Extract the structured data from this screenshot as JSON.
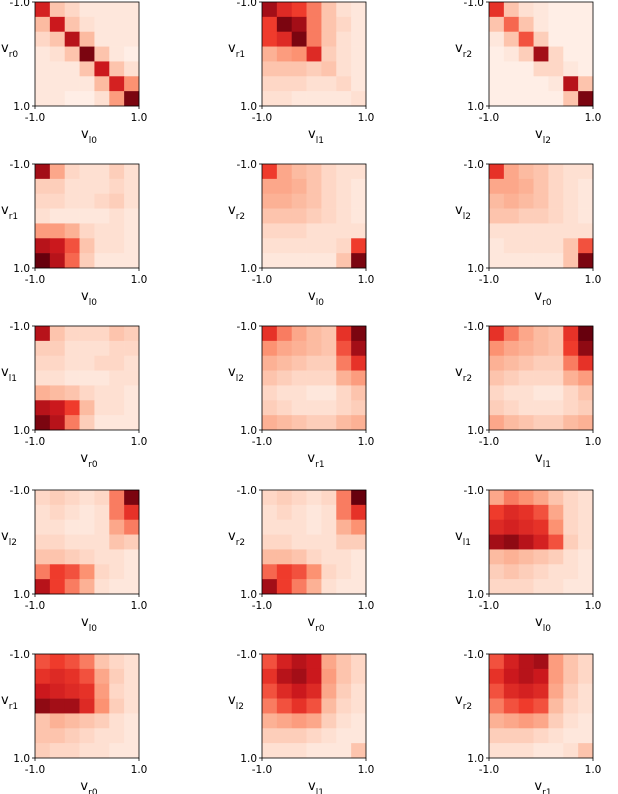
{
  "chart_data": [
    {
      "type": "heatmap",
      "xlabel": "v_{l_0}",
      "ylabel": "v_{r_0}",
      "xticks": [
        "-1.0",
        "1.0"
      ],
      "yticks": [
        "-1.0",
        "1.0"
      ],
      "colormap": "Reds",
      "values": [
        [
          0.9,
          0.3,
          0.2,
          0.1,
          0.1,
          0.1,
          0.1
        ],
        [
          0.35,
          0.95,
          0.3,
          0.15,
          0.1,
          0.1,
          0.1
        ],
        [
          0.2,
          0.3,
          1.0,
          0.35,
          0.1,
          0.1,
          0.1
        ],
        [
          0.1,
          0.15,
          0.3,
          1.15,
          0.3,
          0.1,
          0.05
        ],
        [
          0.1,
          0.1,
          0.1,
          0.3,
          0.95,
          0.3,
          0.15
        ],
        [
          0.1,
          0.1,
          0.1,
          0.1,
          0.35,
          0.9,
          0.55
        ],
        [
          0.1,
          0.1,
          0.05,
          0.05,
          0.15,
          0.5,
          1.15
        ]
      ]
    },
    {
      "type": "heatmap",
      "xlabel": "v_{l_1}",
      "ylabel": "v_{r_1}",
      "xticks": [
        "-1.0",
        "1.0"
      ],
      "yticks": [
        "-1.0",
        "1.0"
      ],
      "colormap": "Reds",
      "values": [
        [
          1.05,
          0.85,
          0.75,
          0.6,
          0.3,
          0.15,
          0.1
        ],
        [
          0.75,
          1.15,
          1.05,
          0.6,
          0.3,
          0.2,
          0.1
        ],
        [
          0.75,
          0.85,
          1.15,
          0.6,
          0.3,
          0.15,
          0.1
        ],
        [
          0.4,
          0.5,
          0.55,
          0.85,
          0.25,
          0.15,
          0.1
        ],
        [
          0.3,
          0.3,
          0.3,
          0.25,
          0.3,
          0.15,
          0.1
        ],
        [
          0.2,
          0.2,
          0.2,
          0.15,
          0.15,
          0.2,
          0.1
        ],
        [
          0.15,
          0.15,
          0.1,
          0.1,
          0.1,
          0.1,
          0.15
        ]
      ]
    },
    {
      "type": "heatmap",
      "xlabel": "v_{l_2}",
      "ylabel": "v_{r_2}",
      "xticks": [
        "-1.0",
        "1.0"
      ],
      "yticks": [
        "-1.0",
        "1.0"
      ],
      "colormap": "Reds",
      "values": [
        [
          0.8,
          0.3,
          0.15,
          0.1,
          0.05,
          0.05,
          0.05
        ],
        [
          0.3,
          0.65,
          0.3,
          0.1,
          0.05,
          0.05,
          0.05
        ],
        [
          0.1,
          0.3,
          0.7,
          0.25,
          0.05,
          0.05,
          0.05
        ],
        [
          0.05,
          0.1,
          0.25,
          1.05,
          0.2,
          0.05,
          0.05
        ],
        [
          0.05,
          0.05,
          0.05,
          0.2,
          0.2,
          0.1,
          0.05
        ],
        [
          0.05,
          0.05,
          0.05,
          0.05,
          0.1,
          1.0,
          0.3
        ],
        [
          0.05,
          0.05,
          0.05,
          0.05,
          0.05,
          0.3,
          1.15
        ]
      ]
    },
    {
      "type": "heatmap",
      "xlabel": "v_{l_0}",
      "ylabel": "v_{r_1}",
      "xticks": [
        "-1.0",
        "1.0"
      ],
      "yticks": [
        "-1.0",
        "1.0"
      ],
      "colormap": "Reds",
      "values": [
        [
          1.05,
          0.45,
          0.2,
          0.15,
          0.15,
          0.25,
          0.15
        ],
        [
          0.25,
          0.25,
          0.15,
          0.15,
          0.15,
          0.2,
          0.15
        ],
        [
          0.2,
          0.2,
          0.15,
          0.15,
          0.2,
          0.25,
          0.15
        ],
        [
          0.15,
          0.1,
          0.1,
          0.1,
          0.1,
          0.15,
          0.1
        ],
        [
          0.5,
          0.5,
          0.4,
          0.2,
          0.15,
          0.15,
          0.1
        ],
        [
          1.0,
          0.95,
          0.7,
          0.3,
          0.15,
          0.15,
          0.1
        ],
        [
          1.2,
          1.0,
          0.65,
          0.25,
          0.1,
          0.1,
          0.1
        ]
      ]
    },
    {
      "type": "heatmap",
      "xlabel": "v_{l_0}",
      "ylabel": "v_{r_2}",
      "xticks": [
        "-1.0",
        "1.0"
      ],
      "yticks": [
        "-1.0",
        "1.0"
      ],
      "colormap": "Reds",
      "values": [
        [
          0.75,
          0.45,
          0.35,
          0.3,
          0.2,
          0.15,
          0.15
        ],
        [
          0.45,
          0.45,
          0.4,
          0.3,
          0.2,
          0.15,
          0.1
        ],
        [
          0.4,
          0.4,
          0.35,
          0.3,
          0.2,
          0.15,
          0.1
        ],
        [
          0.3,
          0.3,
          0.3,
          0.25,
          0.2,
          0.15,
          0.1
        ],
        [
          0.2,
          0.2,
          0.2,
          0.15,
          0.15,
          0.15,
          0.15
        ],
        [
          0.15,
          0.15,
          0.15,
          0.15,
          0.15,
          0.2,
          0.75
        ],
        [
          0.1,
          0.1,
          0.1,
          0.1,
          0.1,
          0.3,
          1.15
        ]
      ]
    },
    {
      "type": "heatmap",
      "xlabel": "v_{r_0}",
      "ylabel": "v_{l_2}",
      "xticks": [
        "-1.0",
        "1.0"
      ],
      "yticks": [
        "-1.0",
        "1.0"
      ],
      "colormap": "Reds",
      "values": [
        [
          0.8,
          0.45,
          0.35,
          0.3,
          0.2,
          0.15,
          0.15
        ],
        [
          0.45,
          0.45,
          0.4,
          0.3,
          0.2,
          0.15,
          0.1
        ],
        [
          0.35,
          0.4,
          0.35,
          0.3,
          0.2,
          0.15,
          0.1
        ],
        [
          0.3,
          0.3,
          0.25,
          0.25,
          0.2,
          0.15,
          0.1
        ],
        [
          0.15,
          0.15,
          0.15,
          0.15,
          0.15,
          0.15,
          0.15
        ],
        [
          0.1,
          0.15,
          0.15,
          0.15,
          0.15,
          0.3,
          0.7
        ],
        [
          0.1,
          0.1,
          0.1,
          0.1,
          0.1,
          0.3,
          1.15
        ]
      ]
    },
    {
      "type": "heatmap",
      "xlabel": "v_{r_0}",
      "ylabel": "v_{l_1}",
      "xticks": [
        "-1.0",
        "1.0"
      ],
      "yticks": [
        "-1.0",
        "1.0"
      ],
      "colormap": "Reds",
      "values": [
        [
          1.0,
          0.3,
          0.2,
          0.2,
          0.2,
          0.3,
          0.25
        ],
        [
          0.25,
          0.25,
          0.15,
          0.15,
          0.15,
          0.2,
          0.2
        ],
        [
          0.2,
          0.2,
          0.15,
          0.15,
          0.2,
          0.2,
          0.15
        ],
        [
          0.15,
          0.15,
          0.1,
          0.1,
          0.1,
          0.15,
          0.15
        ],
        [
          0.4,
          0.35,
          0.3,
          0.2,
          0.15,
          0.15,
          0.1
        ],
        [
          1.0,
          0.95,
          0.75,
          0.35,
          0.15,
          0.15,
          0.1
        ],
        [
          1.15,
          1.0,
          0.6,
          0.25,
          0.1,
          0.1,
          0.1
        ]
      ]
    },
    {
      "type": "heatmap",
      "xlabel": "v_{r_1}",
      "ylabel": "v_{l_2}",
      "xticks": [
        "-1.0",
        "1.0"
      ],
      "yticks": [
        "-1.0",
        "1.0"
      ],
      "colormap": "Reds",
      "values": [
        [
          0.8,
          0.6,
          0.45,
          0.35,
          0.3,
          0.8,
          1.15
        ],
        [
          0.55,
          0.45,
          0.4,
          0.35,
          0.3,
          0.7,
          1.05
        ],
        [
          0.4,
          0.35,
          0.3,
          0.25,
          0.25,
          0.6,
          0.8
        ],
        [
          0.3,
          0.25,
          0.2,
          0.2,
          0.2,
          0.4,
          0.5
        ],
        [
          0.2,
          0.15,
          0.15,
          0.1,
          0.1,
          0.2,
          0.3
        ],
        [
          0.25,
          0.2,
          0.15,
          0.15,
          0.15,
          0.2,
          0.25
        ],
        [
          0.4,
          0.35,
          0.3,
          0.25,
          0.25,
          0.35,
          0.4
        ]
      ]
    },
    {
      "type": "heatmap",
      "xlabel": "v_{l_1}",
      "ylabel": "v_{r_2}",
      "xticks": [
        "-1.0",
        "1.0"
      ],
      "yticks": [
        "-1.0",
        "1.0"
      ],
      "colormap": "Reds",
      "values": [
        [
          0.8,
          0.6,
          0.45,
          0.35,
          0.3,
          0.8,
          1.2
        ],
        [
          0.55,
          0.45,
          0.4,
          0.35,
          0.3,
          0.75,
          1.1
        ],
        [
          0.4,
          0.35,
          0.3,
          0.25,
          0.25,
          0.6,
          0.8
        ],
        [
          0.3,
          0.25,
          0.2,
          0.2,
          0.2,
          0.4,
          0.5
        ],
        [
          0.2,
          0.15,
          0.15,
          0.1,
          0.1,
          0.2,
          0.3
        ],
        [
          0.25,
          0.2,
          0.15,
          0.15,
          0.15,
          0.2,
          0.25
        ],
        [
          0.45,
          0.35,
          0.3,
          0.25,
          0.25,
          0.35,
          0.4
        ]
      ]
    },
    {
      "type": "heatmap",
      "xlabel": "v_{l_0}",
      "ylabel": "v_{l_2}",
      "xticks": [
        "-1.0",
        "1.0"
      ],
      "yticks": [
        "-1.0",
        "1.0"
      ],
      "colormap": "Reds",
      "values": [
        [
          0.2,
          0.25,
          0.2,
          0.15,
          0.2,
          0.6,
          1.15
        ],
        [
          0.15,
          0.2,
          0.15,
          0.1,
          0.15,
          0.6,
          0.8
        ],
        [
          0.15,
          0.15,
          0.1,
          0.1,
          0.15,
          0.45,
          0.6
        ],
        [
          0.2,
          0.2,
          0.15,
          0.15,
          0.15,
          0.3,
          0.25
        ],
        [
          0.3,
          0.3,
          0.25,
          0.2,
          0.15,
          0.15,
          0.1
        ],
        [
          0.6,
          0.75,
          0.7,
          0.55,
          0.2,
          0.15,
          0.1
        ],
        [
          1.0,
          0.75,
          0.6,
          0.4,
          0.15,
          0.1,
          0.1
        ]
      ]
    },
    {
      "type": "heatmap",
      "xlabel": "v_{r_0}",
      "ylabel": "v_{r_2}",
      "xticks": [
        "-1.0",
        "1.0"
      ],
      "yticks": [
        "-1.0",
        "1.0"
      ],
      "colormap": "Reds",
      "values": [
        [
          0.2,
          0.25,
          0.2,
          0.15,
          0.2,
          0.6,
          1.2
        ],
        [
          0.15,
          0.2,
          0.15,
          0.1,
          0.15,
          0.6,
          0.8
        ],
        [
          0.15,
          0.15,
          0.15,
          0.1,
          0.15,
          0.4,
          0.55
        ],
        [
          0.2,
          0.2,
          0.15,
          0.15,
          0.15,
          0.25,
          0.25
        ],
        [
          0.35,
          0.35,
          0.3,
          0.2,
          0.15,
          0.15,
          0.1
        ],
        [
          0.65,
          0.75,
          0.7,
          0.55,
          0.2,
          0.15,
          0.1
        ],
        [
          1.05,
          0.75,
          0.6,
          0.4,
          0.15,
          0.1,
          0.1
        ]
      ]
    },
    {
      "type": "heatmap",
      "xlabel": "v_{l_0}",
      "ylabel": "v_{l_1}",
      "xticks": [
        "-1.0",
        "1.0"
      ],
      "yticks": [
        "-1.0",
        "1.0"
      ],
      "colormap": "Reds",
      "values": [
        [
          0.45,
          0.6,
          0.55,
          0.45,
          0.3,
          0.2,
          0.15
        ],
        [
          0.75,
          0.85,
          0.8,
          0.7,
          0.45,
          0.2,
          0.15
        ],
        [
          0.85,
          0.9,
          0.85,
          0.8,
          0.55,
          0.2,
          0.15
        ],
        [
          1.05,
          1.1,
          1.0,
          0.9,
          0.7,
          0.25,
          0.15
        ],
        [
          0.35,
          0.4,
          0.35,
          0.3,
          0.25,
          0.15,
          0.1
        ],
        [
          0.25,
          0.3,
          0.25,
          0.2,
          0.15,
          0.15,
          0.1
        ],
        [
          0.2,
          0.2,
          0.2,
          0.15,
          0.15,
          0.1,
          0.1
        ]
      ]
    },
    {
      "type": "heatmap",
      "xlabel": "v_{r_0}",
      "ylabel": "v_{r_1}",
      "xticks": [
        "-1.0",
        "1.0"
      ],
      "yticks": [
        "-1.0",
        "1.0"
      ],
      "colormap": "Reds",
      "values": [
        [
          0.7,
          0.75,
          0.7,
          0.6,
          0.3,
          0.2,
          0.15
        ],
        [
          0.8,
          0.85,
          0.8,
          0.7,
          0.45,
          0.25,
          0.15
        ],
        [
          0.95,
          0.9,
          0.85,
          0.8,
          0.5,
          0.2,
          0.15
        ],
        [
          1.1,
          1.05,
          1.05,
          0.85,
          0.55,
          0.25,
          0.15
        ],
        [
          0.3,
          0.4,
          0.35,
          0.3,
          0.25,
          0.15,
          0.1
        ],
        [
          0.3,
          0.3,
          0.25,
          0.2,
          0.15,
          0.15,
          0.1
        ],
        [
          0.25,
          0.2,
          0.2,
          0.15,
          0.15,
          0.1,
          0.1
        ]
      ]
    },
    {
      "type": "heatmap",
      "xlabel": "v_{l_1}",
      "ylabel": "v_{l_2}",
      "xticks": [
        "-1.0",
        "1.0"
      ],
      "yticks": [
        "-1.0",
        "1.0"
      ],
      "colormap": "Reds",
      "values": [
        [
          0.7,
          0.9,
          1.0,
          0.95,
          0.45,
          0.3,
          0.2
        ],
        [
          0.8,
          1.0,
          1.05,
          0.95,
          0.5,
          0.3,
          0.2
        ],
        [
          0.7,
          0.85,
          0.95,
          0.85,
          0.45,
          0.25,
          0.15
        ],
        [
          0.6,
          0.7,
          0.8,
          0.7,
          0.35,
          0.2,
          0.15
        ],
        [
          0.4,
          0.45,
          0.5,
          0.45,
          0.25,
          0.15,
          0.1
        ],
        [
          0.25,
          0.25,
          0.25,
          0.2,
          0.15,
          0.1,
          0.1
        ],
        [
          0.15,
          0.15,
          0.15,
          0.1,
          0.1,
          0.1,
          0.3
        ]
      ]
    },
    {
      "type": "heatmap",
      "xlabel": "v_{r_1}",
      "ylabel": "v_{r_2}",
      "xticks": [
        "-1.0",
        "1.0"
      ],
      "yticks": [
        "-1.0",
        "1.0"
      ],
      "colormap": "Reds",
      "values": [
        [
          0.7,
          0.9,
          1.0,
          1.05,
          0.5,
          0.3,
          0.2
        ],
        [
          0.8,
          0.95,
          1.0,
          0.95,
          0.5,
          0.3,
          0.2
        ],
        [
          0.7,
          0.85,
          0.9,
          0.85,
          0.45,
          0.25,
          0.15
        ],
        [
          0.6,
          0.7,
          0.75,
          0.7,
          0.35,
          0.2,
          0.15
        ],
        [
          0.4,
          0.45,
          0.5,
          0.45,
          0.25,
          0.15,
          0.1
        ],
        [
          0.25,
          0.25,
          0.25,
          0.2,
          0.15,
          0.1,
          0.1
        ],
        [
          0.15,
          0.15,
          0.15,
          0.1,
          0.1,
          0.15,
          0.3
        ]
      ]
    }
  ]
}
